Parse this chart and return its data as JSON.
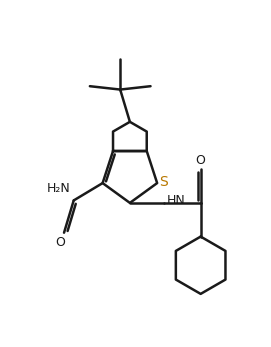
{
  "background_color": "#ffffff",
  "line_color": "#1a1a1a",
  "s_color": "#b87800",
  "line_width": 1.8,
  "figsize": [
    2.71,
    3.47
  ],
  "dpi": 100,
  "xlim": [
    -5.5,
    6.5
  ],
  "ylim": [
    -7.5,
    5.5
  ]
}
